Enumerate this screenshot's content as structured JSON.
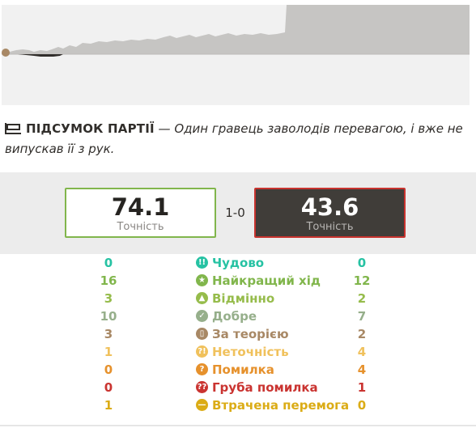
{
  "summary": {
    "heading": "ПІДСУМОК ПАРТІЇ",
    "description": " — Один гравець заволодів перевагою, і вже не випускав її з рук."
  },
  "accuracy": {
    "white": {
      "value": "74.1",
      "label": "Точність"
    },
    "black": {
      "value": "43.6",
      "label": "Точність"
    },
    "score": "1-0"
  },
  "classifications": [
    {
      "id": "brilliant",
      "label": "Чудово",
      "white": "0",
      "black": "0",
      "color": "#26c2a3",
      "icon": "brilliant-icon"
    },
    {
      "id": "best",
      "label": "Найкращий хід",
      "white": "16",
      "black": "12",
      "color": "#81b64c",
      "icon": "star-icon"
    },
    {
      "id": "excellent",
      "label": "Відмінно",
      "white": "3",
      "black": "2",
      "color": "#96bc4b",
      "icon": "thumbs-up-icon"
    },
    {
      "id": "good",
      "label": "Добре",
      "white": "10",
      "black": "7",
      "color": "#96af8b",
      "icon": "check-icon"
    },
    {
      "id": "book",
      "label": "За теорією",
      "white": "3",
      "black": "2",
      "color": "#a88865",
      "icon": "book-icon"
    },
    {
      "id": "inaccuracy",
      "label": "Неточність",
      "white": "1",
      "black": "4",
      "color": "#f0c15c",
      "icon": "inaccuracy-icon"
    },
    {
      "id": "mistake",
      "label": "Помилка",
      "white": "0",
      "black": "4",
      "color": "#e6912c",
      "icon": "mistake-icon"
    },
    {
      "id": "blunder",
      "label": "Груба помилка",
      "white": "0",
      "black": "1",
      "color": "#ca3431",
      "icon": "blunder-icon"
    },
    {
      "id": "miss",
      "label": "Втрачена перемога",
      "white": "1",
      "black": "0",
      "color": "#dbac16",
      "icon": "miss-icon"
    }
  ]
}
